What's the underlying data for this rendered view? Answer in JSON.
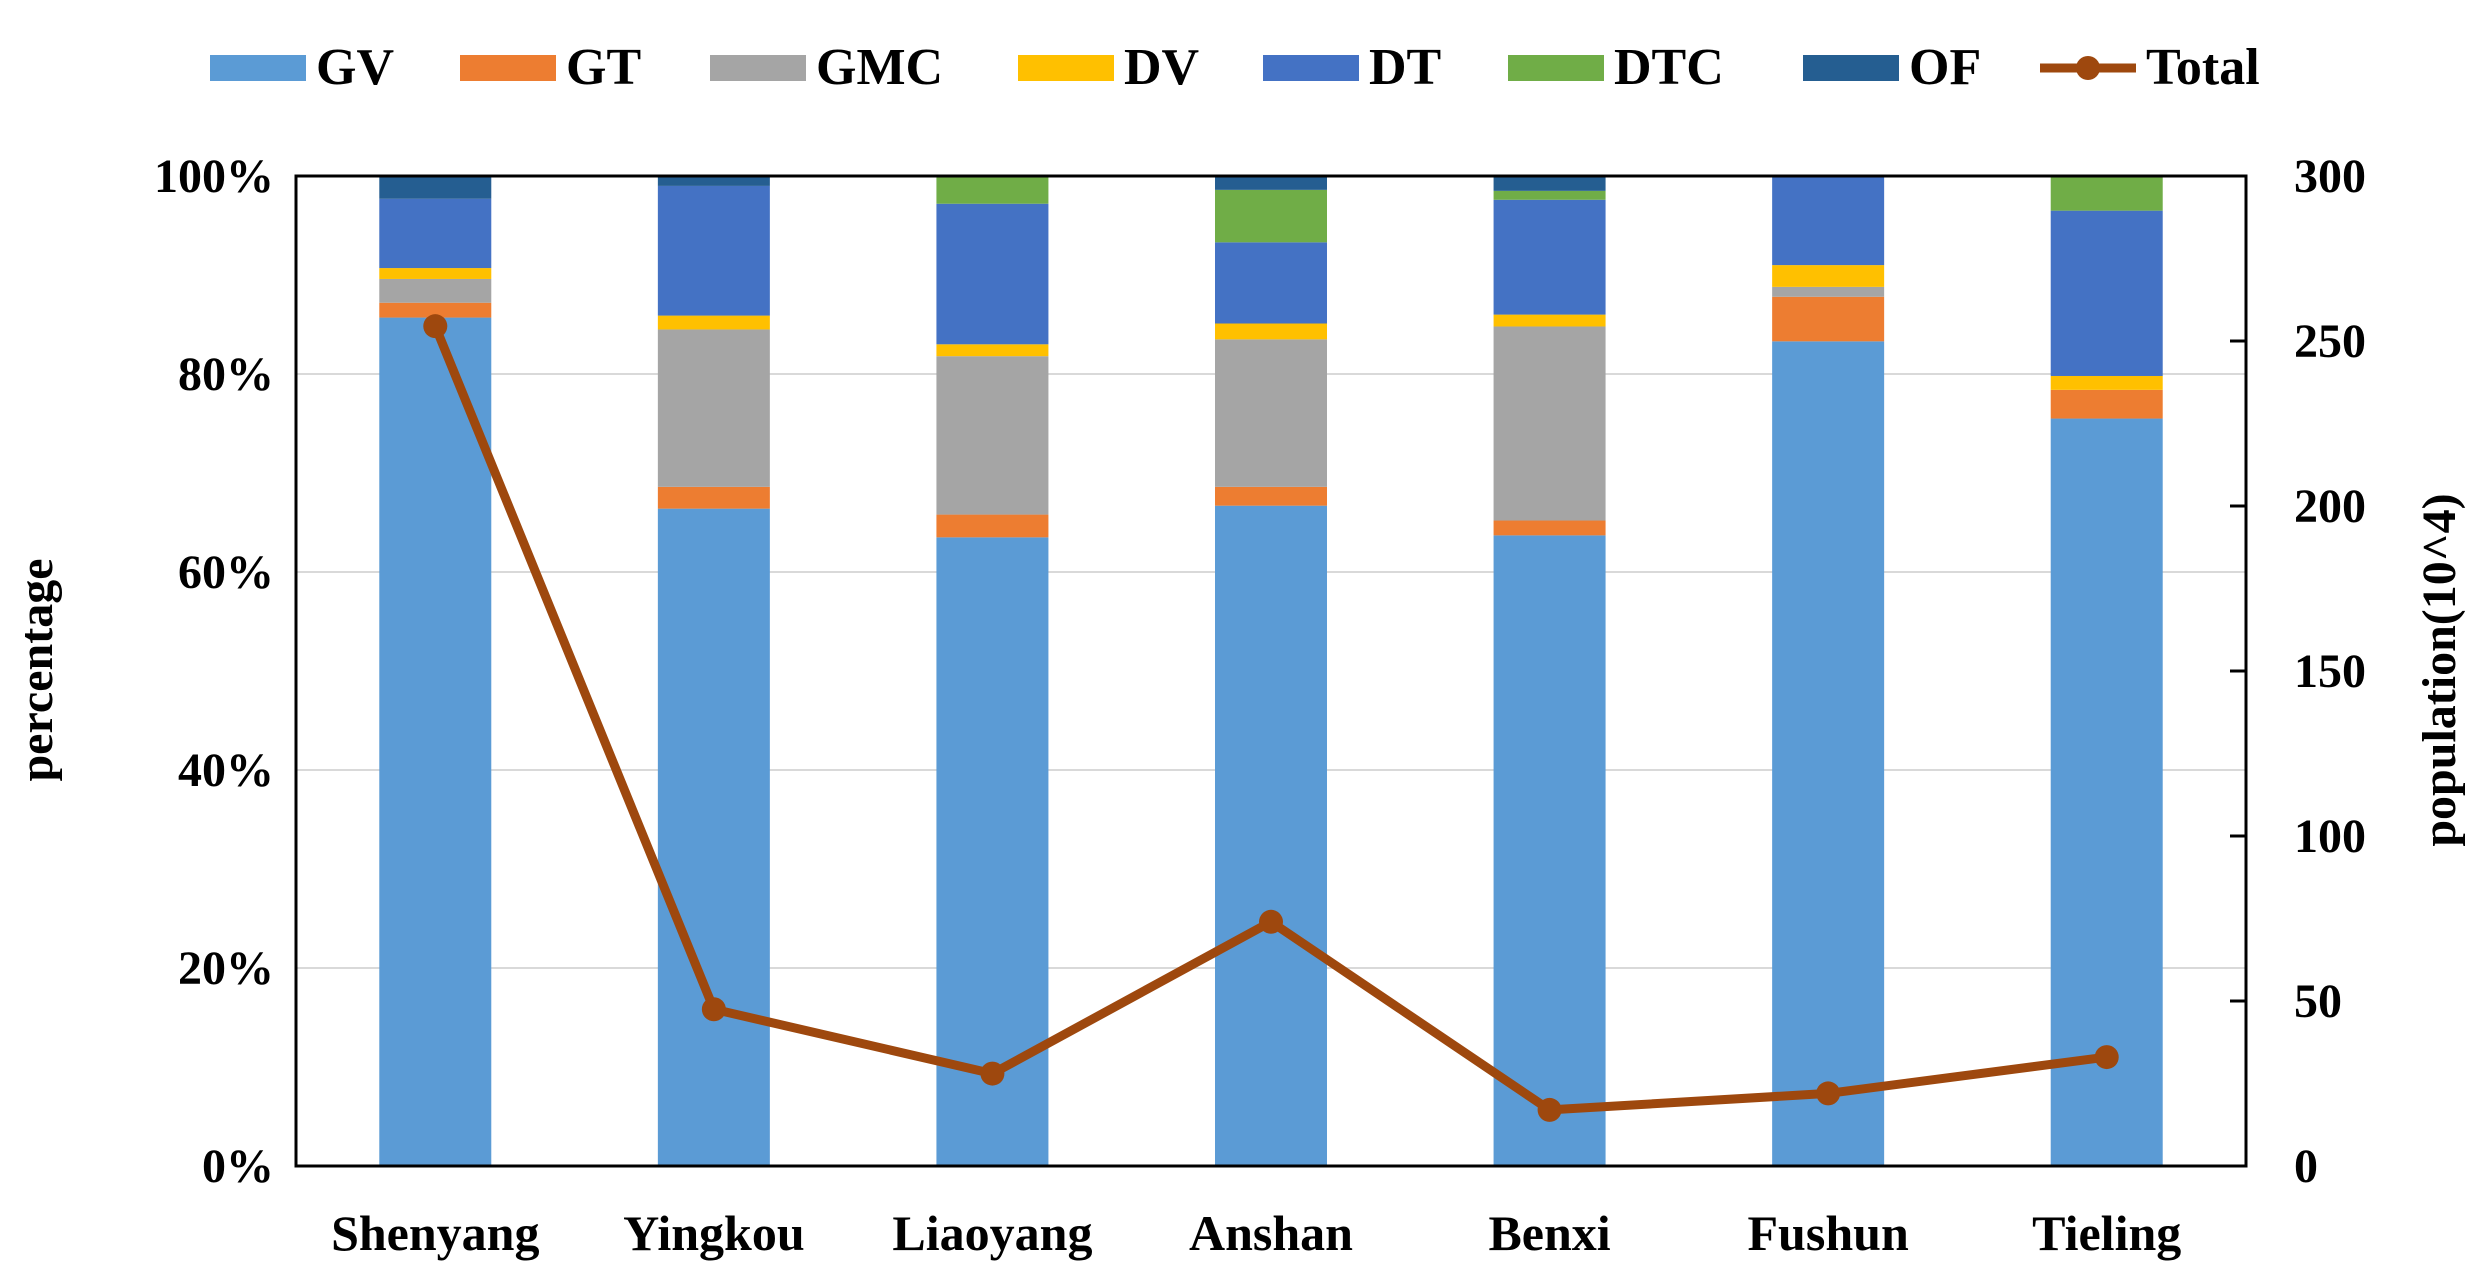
{
  "chart_data": {
    "type": "bar",
    "stacked": true,
    "categories": [
      "Shenyang",
      "Yingkou",
      "Liaoyang",
      "Anshan",
      "Benxi",
      "Fushun",
      "Tieling"
    ],
    "series": [
      {
        "name": "GV",
        "color": "#5B9BD5",
        "values": [
          85.7,
          66.4,
          63.5,
          66.7,
          63.7,
          83.3,
          75.5
        ]
      },
      {
        "name": "GT",
        "color": "#ED7D31",
        "values": [
          1.5,
          2.2,
          2.3,
          1.9,
          1.5,
          4.5,
          2.9
        ]
      },
      {
        "name": "GMC",
        "color": "#A5A5A5",
        "values": [
          2.4,
          15.9,
          16.0,
          14.9,
          19.6,
          1.0,
          0.0
        ]
      },
      {
        "name": "DV",
        "color": "#FFC000",
        "values": [
          1.1,
          1.4,
          1.2,
          1.6,
          1.2,
          2.2,
          1.4
        ]
      },
      {
        "name": "DT",
        "color": "#4472C4",
        "values": [
          7.0,
          13.1,
          14.2,
          8.2,
          11.6,
          9.0,
          16.7
        ]
      },
      {
        "name": "DTC",
        "color": "#70AD47",
        "values": [
          0.0,
          0.0,
          2.8,
          5.3,
          0.9,
          0.0,
          3.5
        ]
      },
      {
        "name": "OF",
        "color": "#255E91",
        "values": [
          2.3,
          1.0,
          0.0,
          1.4,
          1.5,
          0.0,
          0.0
        ]
      }
    ],
    "line_series": {
      "name": "Total",
      "color": "#9E480E",
      "axis": "right",
      "values": [
        254.5,
        47.5,
        28,
        74,
        17,
        22,
        33
      ]
    },
    "ylabel": "percentage",
    "ylabel_right": "population(10^4)",
    "ylim": [
      0,
      100
    ],
    "ylim_right": [
      0,
      300
    ],
    "yticks": [
      "0%",
      "20%",
      "40%",
      "60%",
      "80%",
      "100%"
    ],
    "yticks_right": [
      "0",
      "50",
      "100",
      "150",
      "200",
      "250",
      "300"
    ],
    "legend_position": "top",
    "grid": true
  }
}
